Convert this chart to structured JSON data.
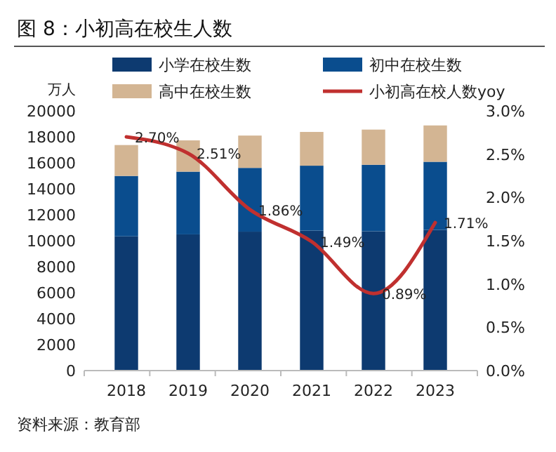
{
  "chart_data": {
    "type": "bar",
    "title": "图 8：小初高在校生人数",
    "ylabel": "万人",
    "annotations": [
      "资料来源：教育部"
    ],
    "categories": [
      "2018",
      "2019",
      "2020",
      "2021",
      "2022",
      "2023"
    ],
    "stacked": true,
    "legend": "top",
    "grid": false,
    "series": [
      {
        "name": "小学在校生数",
        "color": "#0d3a70",
        "values": [
          10340,
          10490,
          10700,
          10780,
          10730,
          10840
        ]
      },
      {
        "name": "初中在校生数",
        "color": "#0a4d8e",
        "values": [
          4650,
          4830,
          4910,
          5000,
          5120,
          5240
        ]
      },
      {
        "name": "高中在校生数",
        "color": "#d3b593",
        "values": [
          2380,
          2410,
          2490,
          2600,
          2710,
          2800
        ]
      },
      {
        "name": "小初高在校人数yoy",
        "type": "line",
        "axis": "y2",
        "color": "#c0302f",
        "values": [
          2.7,
          2.51,
          1.86,
          1.49,
          0.89,
          1.71
        ],
        "value_labels": [
          "2.70%",
          "2.51%",
          "1.86%",
          "1.49%",
          "0.89%",
          "1.71%"
        ]
      }
    ],
    "ylim": [
      0,
      20000
    ],
    "yticks": [
      0,
      2000,
      4000,
      6000,
      8000,
      10000,
      12000,
      14000,
      16000,
      18000,
      20000
    ],
    "y2lim": [
      0,
      3
    ],
    "y2ticks": [
      {
        "value": 0,
        "label": "0.0%"
      },
      {
        "value": 0.5,
        "label": "0.5%"
      },
      {
        "value": 1,
        "label": "1.0%"
      },
      {
        "value": 1.5,
        "label": "1.5%"
      },
      {
        "value": 2,
        "label": "2.0%"
      },
      {
        "value": 2.5,
        "label": "2.5%"
      },
      {
        "value": 3,
        "label": "3.0%"
      }
    ]
  }
}
